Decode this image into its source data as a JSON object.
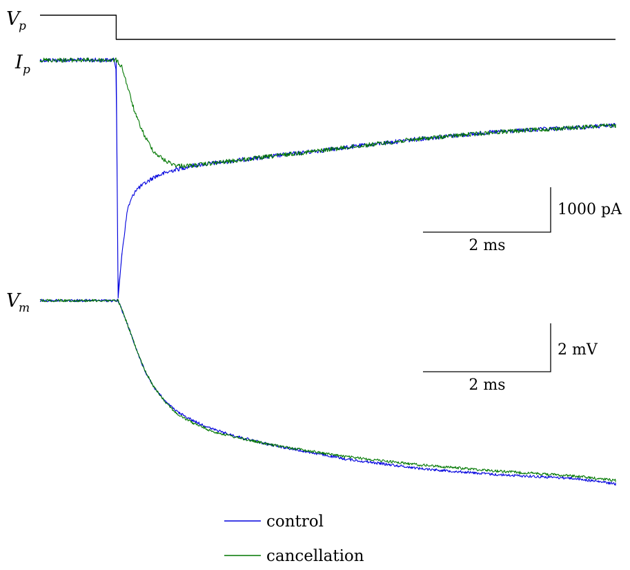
{
  "chart_data": {
    "type": "line",
    "title": "",
    "legend": {
      "placement": "bottom",
      "entries": [
        {
          "name": "control",
          "color": "#0000dd"
        },
        {
          "name": "cancellation",
          "color": "#007700"
        }
      ]
    },
    "panels": [
      {
        "id": "vp",
        "label": "V",
        "label_sub": "p",
        "series": [
          {
            "name": "command",
            "color": "#000000",
            "points": [
              [
                0,
                0
              ],
              [
                2,
                0
              ],
              [
                2,
                -1
              ],
              [
                15.2,
                -1
              ]
            ]
          }
        ]
      },
      {
        "id": "ip",
        "label": "I",
        "label_sub": "p",
        "y_unit": "pA",
        "scale_bar": {
          "time_label": "2 ms",
          "time_ms": 2,
          "amp_label": "1000 pA",
          "amp_value": 1000
        },
        "series": [
          {
            "name": "control",
            "color": "#0000dd",
            "baseline": 0,
            "points": [
              [
                0,
                0
              ],
              [
                1.95,
                0
              ],
              [
                2.0,
                -200
              ],
              [
                2.05,
                -5300
              ],
              [
                2.15,
                -4300
              ],
              [
                2.3,
                -3300
              ],
              [
                2.5,
                -2900
              ],
              [
                3.0,
                -2600
              ],
              [
                3.5,
                -2450
              ],
              [
                4.0,
                -2350
              ],
              [
                6.0,
                -2150
              ],
              [
                8.0,
                -1950
              ],
              [
                10.0,
                -1750
              ],
              [
                12.0,
                -1600
              ],
              [
                15.2,
                -1450
              ]
            ]
          },
          {
            "name": "cancellation",
            "color": "#007700",
            "baseline": 0,
            "points": [
              [
                0,
                0
              ],
              [
                2.0,
                0
              ],
              [
                2.15,
                -150
              ],
              [
                2.3,
                -600
              ],
              [
                2.5,
                -1200
              ],
              [
                2.75,
                -1700
              ],
              [
                3.0,
                -2050
              ],
              [
                3.3,
                -2250
              ],
              [
                3.6,
                -2350
              ],
              [
                4.0,
                -2350
              ],
              [
                6.0,
                -2150
              ],
              [
                8.0,
                -1950
              ],
              [
                10.0,
                -1750
              ],
              [
                12.0,
                -1600
              ],
              [
                15.2,
                -1450
              ]
            ]
          }
        ]
      },
      {
        "id": "vm",
        "label": "V",
        "label_sub": "m",
        "y_unit": "mV",
        "scale_bar": {
          "time_label": "2 ms",
          "time_ms": 2,
          "amp_label": "2 mV",
          "amp_value": 2
        },
        "series": [
          {
            "name": "control",
            "color": "#0000dd",
            "baseline": 0,
            "points": [
              [
                0,
                0
              ],
              [
                2.05,
                0
              ],
              [
                2.3,
                -1.0
              ],
              [
                2.5,
                -1.9
              ],
              [
                2.75,
                -2.9
              ],
              [
                3.0,
                -3.6
              ],
              [
                3.3,
                -4.2
              ],
              [
                3.6,
                -4.6
              ],
              [
                4.0,
                -4.95
              ],
              [
                4.5,
                -5.3
              ],
              [
                5.0,
                -5.55
              ],
              [
                6.0,
                -5.95
              ],
              [
                8.0,
                -6.55
              ],
              [
                10.0,
                -6.95
              ],
              [
                12.0,
                -7.2
              ],
              [
                14.0,
                -7.35
              ],
              [
                15.2,
                -7.6
              ]
            ]
          },
          {
            "name": "cancellation",
            "color": "#007700",
            "baseline": 0,
            "points": [
              [
                0,
                0
              ],
              [
                2.05,
                0
              ],
              [
                2.3,
                -1.0
              ],
              [
                2.5,
                -1.9
              ],
              [
                2.75,
                -2.9
              ],
              [
                3.0,
                -3.6
              ],
              [
                3.3,
                -4.2
              ],
              [
                3.6,
                -4.7
              ],
              [
                4.0,
                -5.05
              ],
              [
                4.5,
                -5.4
              ],
              [
                5.0,
                -5.6
              ],
              [
                6.0,
                -5.95
              ],
              [
                8.0,
                -6.45
              ],
              [
                10.0,
                -6.8
              ],
              [
                12.0,
                -7.05
              ],
              [
                14.0,
                -7.25
              ],
              [
                15.2,
                -7.45
              ]
            ]
          }
        ]
      }
    ]
  }
}
